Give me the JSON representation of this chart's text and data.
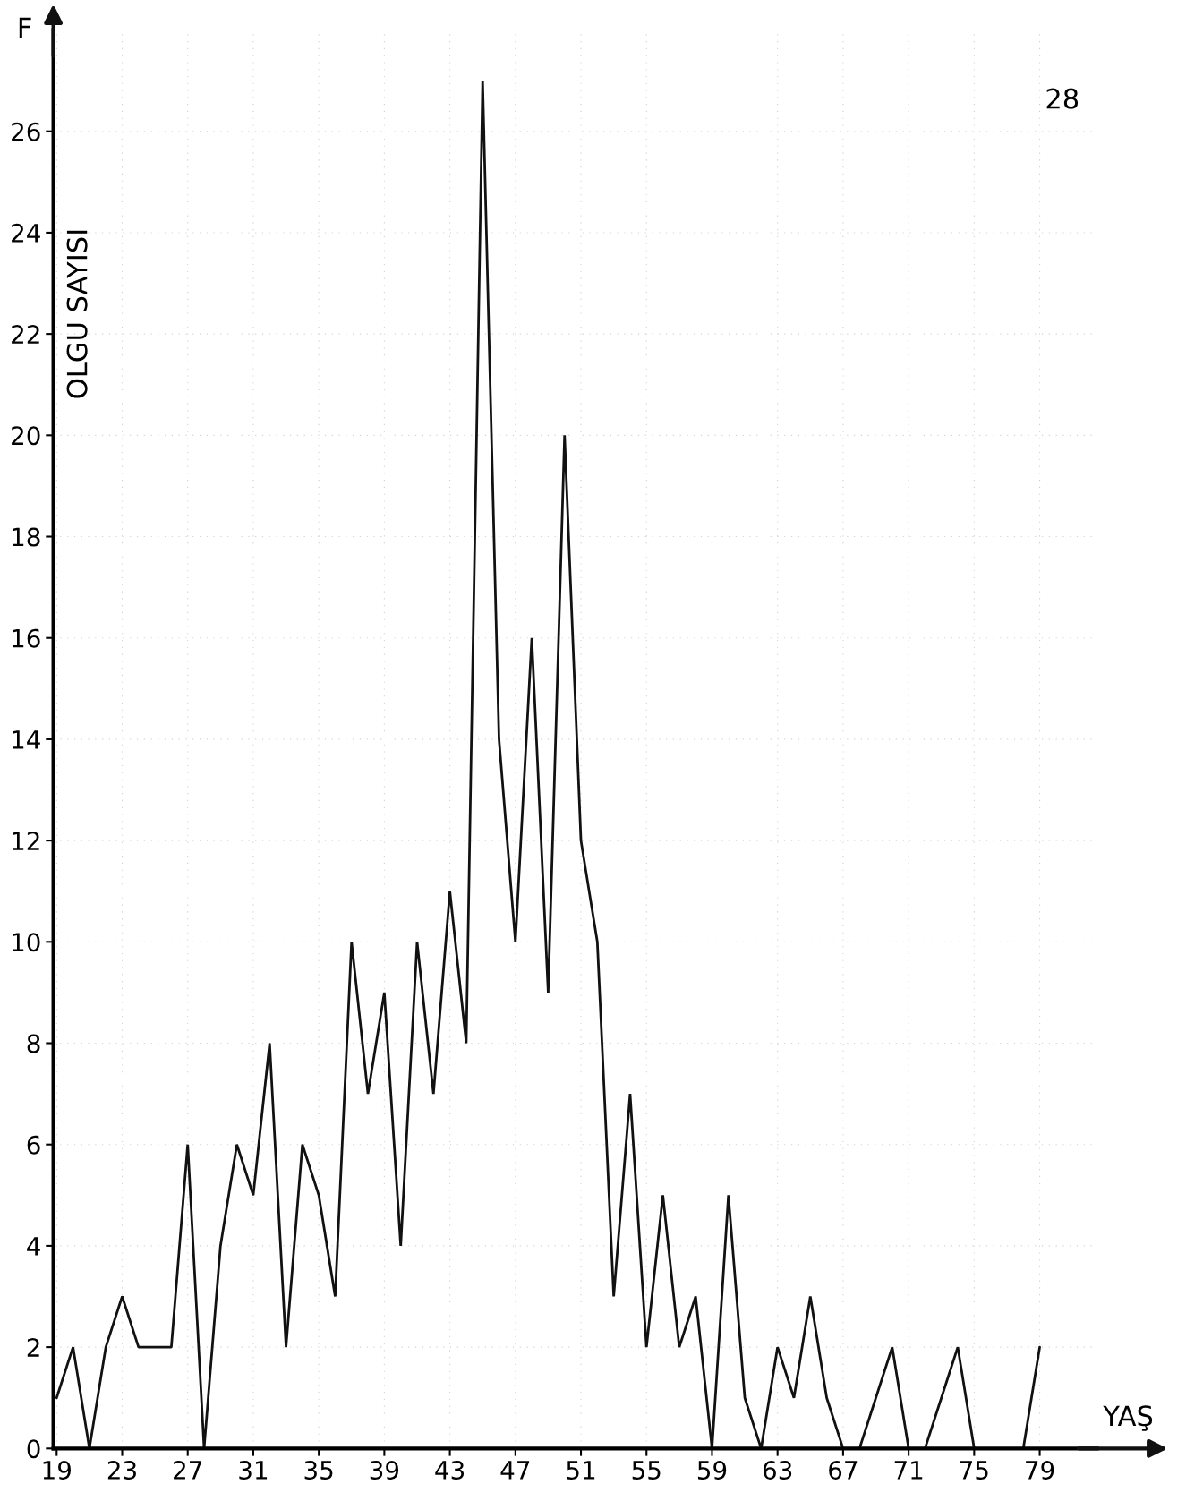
{
  "chart_data": {
    "type": "line",
    "xlabel": "YAŞ",
    "ylabel": "OLGU SAYISI",
    "annotations": [
      "F",
      "28"
    ],
    "x": [
      19,
      20,
      21,
      22,
      23,
      24,
      25,
      26,
      27,
      28,
      29,
      30,
      31,
      32,
      33,
      34,
      35,
      36,
      37,
      38,
      39,
      40,
      41,
      42,
      43,
      44,
      45,
      46,
      47,
      48,
      49,
      50,
      51,
      52,
      53,
      54,
      55,
      56,
      57,
      58,
      59,
      60,
      61,
      62,
      63,
      64,
      65,
      66,
      67,
      68,
      69,
      70,
      71,
      72,
      73,
      74,
      75,
      76,
      77,
      78,
      79
    ],
    "series": [
      {
        "color": "#111111",
        "values": [
          1,
          2,
          0,
          2,
          3,
          2,
          2,
          2,
          6,
          0,
          4,
          6,
          5,
          8,
          2,
          6,
          5,
          3,
          10,
          7,
          9,
          4,
          10,
          7,
          11,
          8,
          27,
          14,
          10,
          16,
          9,
          20,
          12,
          10,
          3,
          7,
          2,
          5,
          2,
          3,
          0,
          5,
          1,
          0,
          2,
          1,
          3,
          1,
          0,
          0,
          1,
          2,
          0,
          0,
          1,
          2,
          0,
          0,
          0,
          0,
          2
        ]
      }
    ],
    "xlim": [
      18.8,
      82.5
    ],
    "ylim": [
      0,
      28
    ],
    "xticks": [
      19,
      23,
      27,
      31,
      35,
      39,
      43,
      47,
      51,
      55,
      59,
      63,
      67,
      71,
      75,
      79
    ],
    "yticks": [
      0,
      2,
      4,
      6,
      8,
      10,
      12,
      14,
      16,
      18,
      20,
      22,
      24,
      26
    ],
    "grid": true,
    "marker": "none",
    "line_style": "solid",
    "legend": false
  }
}
